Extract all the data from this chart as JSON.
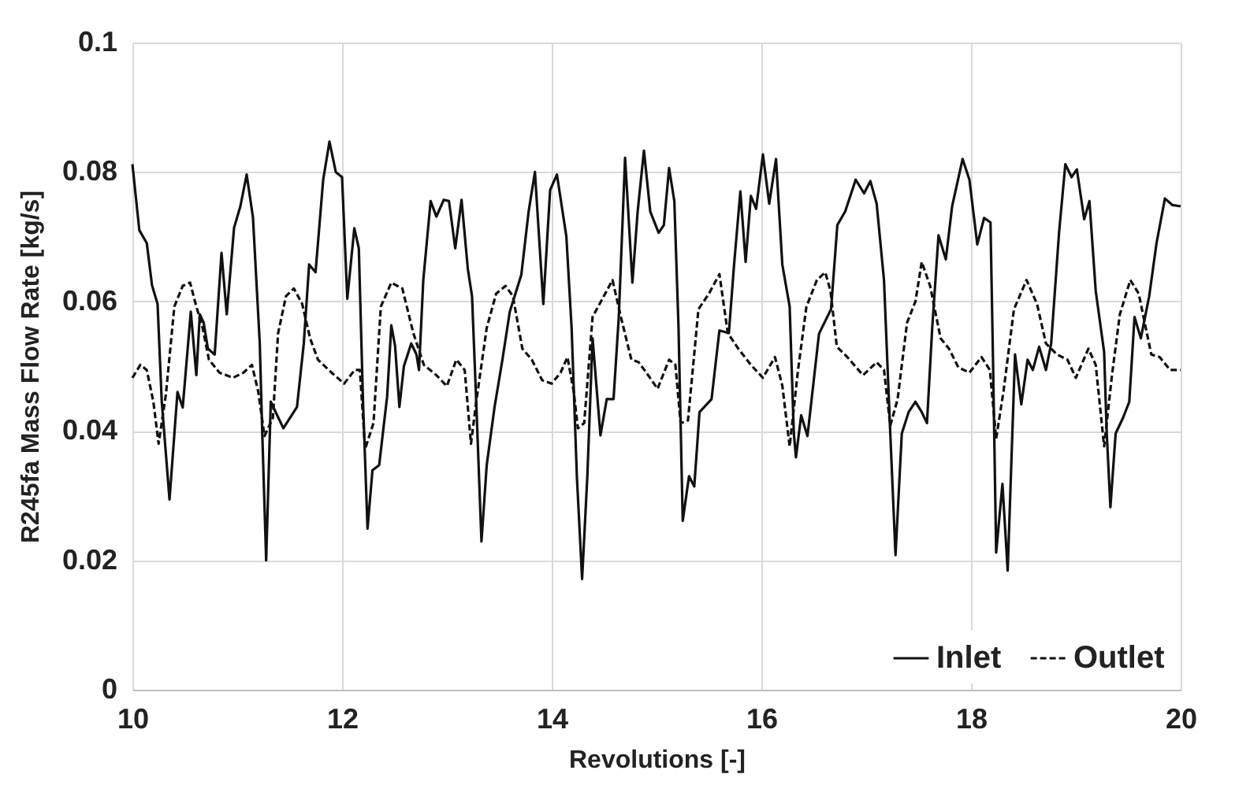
{
  "chart_data": {
    "type": "line",
    "xlabel": "Revolutions [-]",
    "ylabel": "R245fa Mass Flow Rate [kg/s]",
    "xlim": [
      10,
      20
    ],
    "ylim": [
      0,
      0.1
    ],
    "xticks": [
      10,
      12,
      14,
      16,
      18,
      20
    ],
    "yticks": [
      0,
      0.02,
      0.04,
      0.06,
      0.08,
      0.1
    ],
    "grid": true,
    "legend": "bottom right",
    "marker": "none",
    "series": [
      {
        "name": "Inlet",
        "color": "#111111",
        "line_style": "solid",
        "x": [
          10.0,
          10.066,
          10.137,
          10.187,
          10.24,
          10.28,
          10.354,
          10.43,
          10.48,
          10.557,
          10.61,
          10.643,
          10.68,
          10.72,
          10.785,
          10.85,
          10.9,
          10.97,
          11.03,
          11.09,
          11.15,
          11.215,
          11.24,
          11.276,
          11.32,
          11.44,
          11.57,
          11.635,
          11.686,
          11.747,
          11.82,
          11.88,
          11.94,
          12.0,
          12.05,
          12.117,
          12.16,
          12.2,
          12.243,
          12.29,
          12.354,
          12.43,
          12.47,
          12.506,
          12.547,
          12.59,
          12.66,
          12.71,
          12.734,
          12.775,
          12.845,
          12.9,
          12.97,
          13.02,
          13.08,
          13.14,
          13.2,
          13.24,
          13.28,
          13.33,
          13.38,
          13.455,
          13.53,
          13.6,
          13.71,
          13.78,
          13.84,
          13.92,
          13.985,
          14.05,
          14.14,
          14.19,
          14.24,
          14.29,
          14.34,
          14.39,
          14.465,
          14.525,
          14.59,
          14.64,
          14.7,
          14.77,
          14.82,
          14.88,
          14.94,
          15.02,
          15.07,
          15.12,
          15.17,
          15.21,
          15.25,
          15.31,
          15.36,
          15.41,
          15.525,
          15.6,
          15.69,
          15.74,
          15.8,
          15.85,
          15.9,
          15.95,
          16.015,
          16.075,
          16.14,
          16.2,
          16.27,
          16.31,
          16.33,
          16.38,
          16.44,
          16.55,
          16.665,
          16.725,
          16.8,
          16.9,
          16.98,
          17.04,
          17.1,
          17.17,
          17.23,
          17.28,
          17.34,
          17.405,
          17.47,
          17.53,
          17.58,
          17.63,
          17.69,
          17.76,
          17.82,
          17.92,
          17.985,
          18.06,
          18.125,
          18.186,
          18.21,
          18.24,
          18.3,
          18.35,
          18.42,
          18.48,
          18.54,
          18.59,
          18.65,
          18.715,
          18.765,
          18.84,
          18.9,
          18.96,
          19.01,
          19.08,
          19.13,
          19.19,
          19.27,
          19.295,
          19.33,
          19.38,
          19.45,
          19.51,
          19.56,
          19.62,
          19.7,
          19.77,
          19.85,
          19.92,
          20.0
        ],
        "values": [
          0.0812,
          0.071,
          0.069,
          0.0625,
          0.0596,
          0.0445,
          0.0294,
          0.046,
          0.0436,
          0.0584,
          0.0486,
          0.058,
          0.0567,
          0.0527,
          0.0518,
          0.0675,
          0.058,
          0.0714,
          0.0747,
          0.0796,
          0.073,
          0.0535,
          0.039,
          0.02,
          0.0445,
          0.0404,
          0.0437,
          0.0535,
          0.0657,
          0.0645,
          0.0788,
          0.0847,
          0.08,
          0.0792,
          0.0604,
          0.0713,
          0.0682,
          0.0445,
          0.0249,
          0.0339,
          0.0347,
          0.0453,
          0.0563,
          0.0531,
          0.0437,
          0.05,
          0.0535,
          0.0518,
          0.0494,
          0.0633,
          0.0755,
          0.0731,
          0.0757,
          0.0755,
          0.0682,
          0.0757,
          0.065,
          0.0608,
          0.0445,
          0.0229,
          0.0347,
          0.0437,
          0.051,
          0.0584,
          0.0641,
          0.0739,
          0.08,
          0.0596,
          0.0772,
          0.0796,
          0.07,
          0.0559,
          0.033,
          0.0171,
          0.033,
          0.0543,
          0.0393,
          0.0449,
          0.0449,
          0.0576,
          0.0822,
          0.0629,
          0.0739,
          0.0833,
          0.0739,
          0.0706,
          0.0718,
          0.0806,
          0.0755,
          0.0559,
          0.0261,
          0.033,
          0.0314,
          0.0429,
          0.0449,
          0.0555,
          0.0551,
          0.0657,
          0.077,
          0.0661,
          0.0763,
          0.0743,
          0.0827,
          0.0751,
          0.082,
          0.0657,
          0.0592,
          0.0396,
          0.0359,
          0.0424,
          0.0392,
          0.055,
          0.0588,
          0.0718,
          0.0739,
          0.0788,
          0.0767,
          0.0786,
          0.0751,
          0.0633,
          0.0396,
          0.0208,
          0.0396,
          0.0429,
          0.0445,
          0.0429,
          0.0412,
          0.0559,
          0.0702,
          0.0665,
          0.0747,
          0.082,
          0.0788,
          0.0688,
          0.0729,
          0.0722,
          0.051,
          0.0212,
          0.0318,
          0.0184,
          0.0518,
          0.0441,
          0.051,
          0.0494,
          0.053,
          0.0494,
          0.0535,
          0.0706,
          0.0812,
          0.0792,
          0.0804,
          0.0727,
          0.0755,
          0.0616,
          0.0522,
          0.0396,
          0.0282,
          0.0396,
          0.042,
          0.0445,
          0.0576,
          0.0543,
          0.0608,
          0.069,
          0.0759,
          0.0749,
          0.0747
        ]
      },
      {
        "name": "Outlet",
        "color": "#111111",
        "line_style": "dashed",
        "x": [
          10.0,
          10.076,
          10.137,
          10.2,
          10.25,
          10.32,
          10.4,
          10.48,
          10.55,
          10.61,
          10.67,
          10.73,
          10.83,
          10.96,
          11.06,
          11.14,
          11.2,
          11.26,
          11.34,
          11.39,
          11.465,
          11.54,
          11.62,
          11.695,
          11.77,
          11.9,
          12.02,
          12.12,
          12.17,
          12.22,
          12.3,
          12.37,
          12.47,
          12.575,
          12.68,
          12.78,
          12.9,
          13.0,
          13.09,
          13.17,
          13.23,
          13.28,
          13.38,
          13.47,
          13.56,
          13.63,
          13.72,
          13.81,
          13.91,
          14.0,
          14.085,
          14.15,
          14.21,
          14.25,
          14.31,
          14.39,
          14.47,
          14.58,
          14.66,
          14.76,
          14.83,
          14.92,
          15.01,
          15.12,
          15.18,
          15.23,
          15.3,
          15.4,
          15.5,
          15.6,
          15.68,
          15.78,
          15.9,
          16.015,
          16.13,
          16.2,
          16.27,
          16.35,
          16.43,
          16.53,
          16.61,
          16.66,
          16.72,
          16.82,
          16.97,
          17.1,
          17.17,
          17.23,
          17.3,
          17.39,
          17.47,
          17.53,
          17.61,
          17.71,
          17.79,
          17.88,
          17.985,
          18.1,
          18.18,
          18.24,
          18.31,
          18.41,
          18.53,
          18.63,
          18.715,
          18.82,
          18.92,
          19.0,
          19.12,
          19.19,
          19.27,
          19.345,
          19.42,
          19.52,
          19.6,
          19.72,
          19.8,
          19.9,
          20.0
        ],
        "values": [
          0.0482,
          0.0502,
          0.0494,
          0.0445,
          0.038,
          0.0457,
          0.0592,
          0.0624,
          0.0629,
          0.0592,
          0.0559,
          0.051,
          0.049,
          0.0482,
          0.049,
          0.0502,
          0.0461,
          0.0392,
          0.042,
          0.0551,
          0.0608,
          0.062,
          0.0596,
          0.0543,
          0.051,
          0.049,
          0.0473,
          0.0494,
          0.0494,
          0.0372,
          0.0412,
          0.0592,
          0.0629,
          0.062,
          0.0551,
          0.0502,
          0.0486,
          0.0469,
          0.051,
          0.0494,
          0.038,
          0.0445,
          0.0559,
          0.0612,
          0.0624,
          0.0608,
          0.0527,
          0.051,
          0.0478,
          0.0473,
          0.049,
          0.0514,
          0.0461,
          0.0404,
          0.0412,
          0.0576,
          0.06,
          0.0633,
          0.0576,
          0.051,
          0.0506,
          0.0486,
          0.0465,
          0.051,
          0.0502,
          0.0412,
          0.0416,
          0.0588,
          0.0612,
          0.0642,
          0.0551,
          0.0527,
          0.0502,
          0.0482,
          0.0514,
          0.047,
          0.0376,
          0.0494,
          0.0592,
          0.0633,
          0.0645,
          0.0616,
          0.053,
          0.0514,
          0.0486,
          0.0506,
          0.0494,
          0.0408,
          0.0449,
          0.0567,
          0.06,
          0.0661,
          0.0624,
          0.0543,
          0.0527,
          0.0498,
          0.049,
          0.0514,
          0.0494,
          0.0388,
          0.0461,
          0.0588,
          0.0633,
          0.0596,
          0.0535,
          0.0518,
          0.051,
          0.0482,
          0.0527,
          0.0502,
          0.0376,
          0.0486,
          0.058,
          0.0633,
          0.0612,
          0.0518,
          0.0514,
          0.0494,
          0.0494
        ]
      }
    ]
  }
}
